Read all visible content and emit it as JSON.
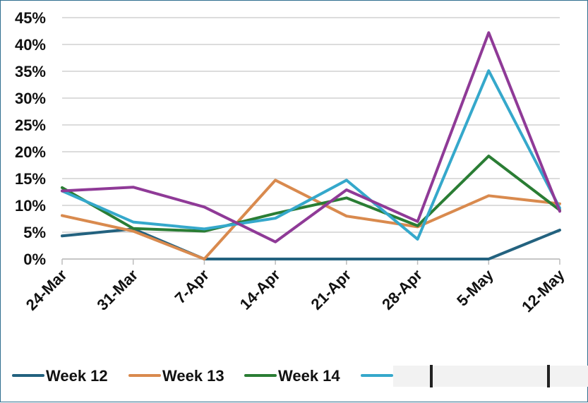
{
  "chart_data": {
    "type": "line",
    "title": "",
    "xlabel": "",
    "ylabel": "",
    "categories": [
      "24-Mar",
      "31-Mar",
      "7-Apr",
      "14-Apr",
      "21-Apr",
      "28-Apr",
      "5-May",
      "12-May"
    ],
    "ylim": [
      0,
      45
    ],
    "yticks": [
      "0%",
      "5%",
      "10%",
      "15%",
      "20%",
      "25%",
      "30%",
      "35%",
      "40%",
      "45%"
    ],
    "grid": "horizontal",
    "legend_position": "bottom",
    "series": [
      {
        "name": "Week 12",
        "color": "#23627f",
        "values": [
          4.3,
          5.6,
          0,
          0,
          0,
          0,
          0,
          5.4
        ]
      },
      {
        "name": "Week 13",
        "color": "#d98a4e",
        "values": [
          8.1,
          5.2,
          0,
          14.7,
          8.0,
          6.0,
          11.8,
          10.3
        ]
      },
      {
        "name": "Week 14",
        "color": "#2a7d34",
        "values": [
          13.3,
          5.7,
          5.2,
          8.5,
          11.4,
          6.2,
          19.2,
          9.1
        ]
      },
      {
        "name": "",
        "color": "#35a8cb",
        "values": [
          12.7,
          6.9,
          5.6,
          7.6,
          14.7,
          3.7,
          35.1,
          9.5
        ]
      },
      {
        "name": "",
        "color": "#8f3a97",
        "values": [
          12.7,
          13.4,
          9.7,
          3.2,
          12.9,
          7.0,
          42.2,
          8.9
        ]
      }
    ]
  }
}
